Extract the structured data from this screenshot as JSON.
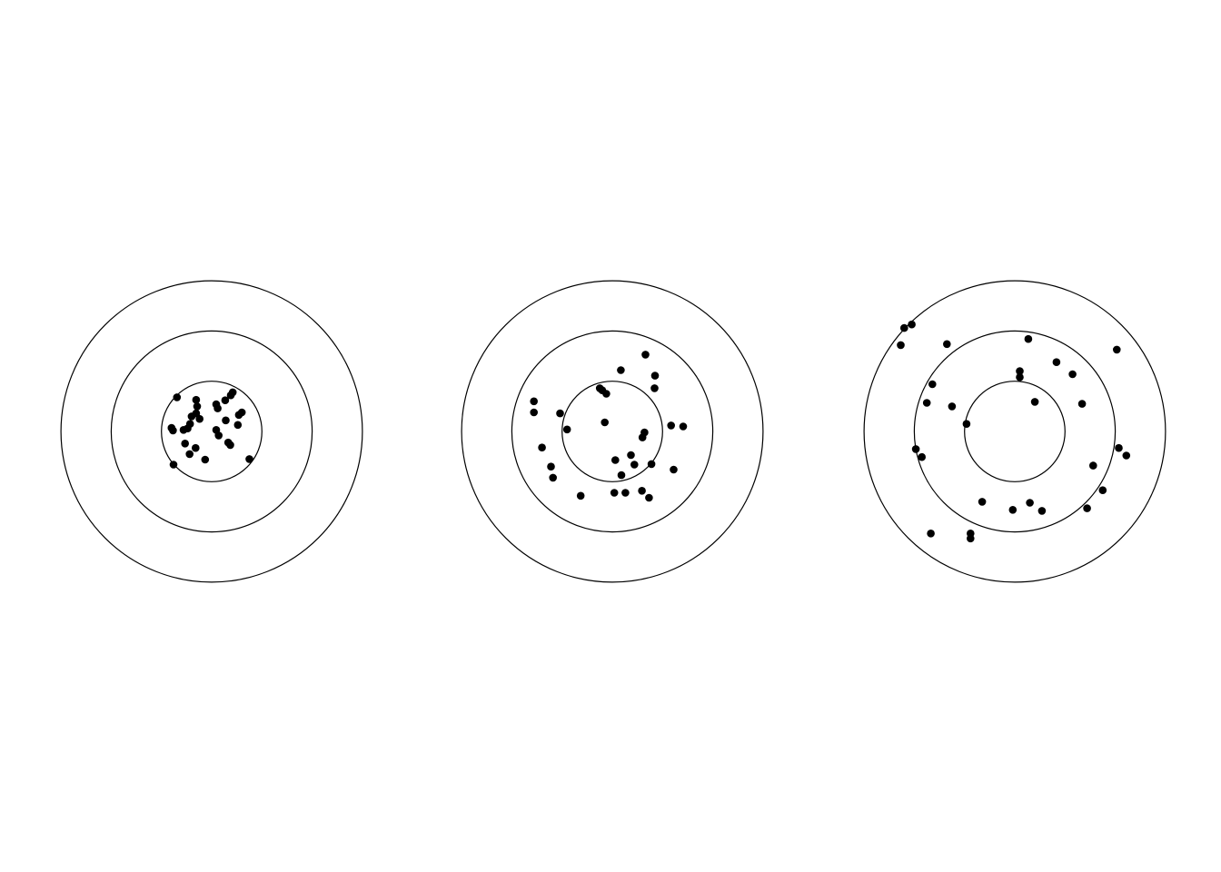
{
  "chart_data": [
    {
      "type": "scatter",
      "title": "",
      "rings": [
        1,
        2,
        3
      ],
      "xlim": [
        -3,
        3
      ],
      "ylim": [
        -3,
        3
      ],
      "grid": false,
      "colors": {
        "ring": "#000000",
        "point": "#000000"
      },
      "points": [
        [
          -0.69,
          0.68
        ],
        [
          -0.31,
          0.63
        ],
        [
          -0.29,
          0.5
        ],
        [
          -0.31,
          0.36
        ],
        [
          -0.4,
          0.3
        ],
        [
          -0.24,
          0.25
        ],
        [
          -0.43,
          0.15
        ],
        [
          -0.8,
          0.07
        ],
        [
          -0.77,
          0.02
        ],
        [
          -0.56,
          0.03
        ],
        [
          -0.48,
          0.06
        ],
        [
          -0.53,
          -0.24
        ],
        [
          -0.32,
          -0.33
        ],
        [
          -0.44,
          -0.45
        ],
        [
          -0.13,
          -0.56
        ],
        [
          -0.76,
          -0.66
        ],
        [
          0.09,
          0.54
        ],
        [
          0.12,
          0.46
        ],
        [
          0.27,
          0.62
        ],
        [
          0.38,
          0.72
        ],
        [
          0.42,
          0.78
        ],
        [
          0.54,
          0.33
        ],
        [
          0.6,
          0.38
        ],
        [
          0.28,
          0.22
        ],
        [
          0.52,
          0.13
        ],
        [
          0.09,
          0.03
        ],
        [
          0.14,
          -0.08
        ],
        [
          0.33,
          -0.22
        ],
        [
          0.37,
          -0.27
        ],
        [
          0.75,
          -0.55
        ]
      ]
    },
    {
      "type": "scatter",
      "title": "",
      "rings": [
        1,
        2,
        3
      ],
      "xlim": [
        -3,
        3
      ],
      "ylim": [
        -3,
        3
      ],
      "grid": false,
      "colors": {
        "ring": "#000000",
        "point": "#000000"
      },
      "points": [
        [
          -1.56,
          0.6
        ],
        [
          -1.56,
          0.38
        ],
        [
          -1.4,
          -0.32
        ],
        [
          -1.22,
          -0.7
        ],
        [
          -1.18,
          -0.92
        ],
        [
          -1.04,
          0.36
        ],
        [
          -0.9,
          0.04
        ],
        [
          -0.63,
          -1.28
        ],
        [
          -0.25,
          0.86
        ],
        [
          -0.2,
          0.82
        ],
        [
          -0.12,
          0.75
        ],
        [
          -0.15,
          0.18
        ],
        [
          0.17,
          1.22
        ],
        [
          0.66,
          1.53
        ],
        [
          0.85,
          1.11
        ],
        [
          0.84,
          0.86
        ],
        [
          0.06,
          -0.57
        ],
        [
          0.18,
          -0.87
        ],
        [
          0.37,
          -0.47
        ],
        [
          0.44,
          -0.66
        ],
        [
          0.6,
          -0.12
        ],
        [
          0.64,
          -0.02
        ],
        [
          0.78,
          -0.65
        ],
        [
          0.04,
          -1.22
        ],
        [
          0.26,
          -1.22
        ],
        [
          0.59,
          -1.18
        ],
        [
          0.73,
          -1.32
        ],
        [
          1.17,
          0.12
        ],
        [
          1.41,
          0.1
        ],
        [
          1.22,
          -0.76
        ]
      ]
    },
    {
      "type": "scatter",
      "title": "",
      "rings": [
        1,
        2,
        3
      ],
      "xlim": [
        -3,
        3
      ],
      "ylim": [
        -3,
        3
      ],
      "grid": false,
      "colors": {
        "ring": "#000000",
        "point": "#000000"
      },
      "points": [
        [
          -2.2,
          2.06
        ],
        [
          -2.05,
          2.13
        ],
        [
          -2.27,
          1.72
        ],
        [
          -1.35,
          1.74
        ],
        [
          -1.64,
          0.94
        ],
        [
          -1.75,
          0.57
        ],
        [
          -1.25,
          0.5
        ],
        [
          -1.97,
          -0.35
        ],
        [
          -1.85,
          -0.51
        ],
        [
          -1.67,
          -2.03
        ],
        [
          -0.96,
          0.15
        ],
        [
          -0.65,
          -1.4
        ],
        [
          -0.88,
          -2.03
        ],
        [
          -0.88,
          -2.13
        ],
        [
          -0.04,
          -1.56
        ],
        [
          0.3,
          -1.42
        ],
        [
          0.54,
          -1.58
        ],
        [
          0.1,
          1.2
        ],
        [
          0.1,
          1.08
        ],
        [
          0.27,
          1.84
        ],
        [
          0.4,
          0.59
        ],
        [
          0.83,
          1.38
        ],
        [
          1.15,
          1.14
        ],
        [
          1.34,
          0.55
        ],
        [
          2.03,
          1.63
        ],
        [
          2.07,
          -0.33
        ],
        [
          2.22,
          -0.48
        ],
        [
          1.56,
          -0.68
        ],
        [
          1.75,
          -1.17
        ],
        [
          1.44,
          -1.53
        ]
      ]
    }
  ]
}
